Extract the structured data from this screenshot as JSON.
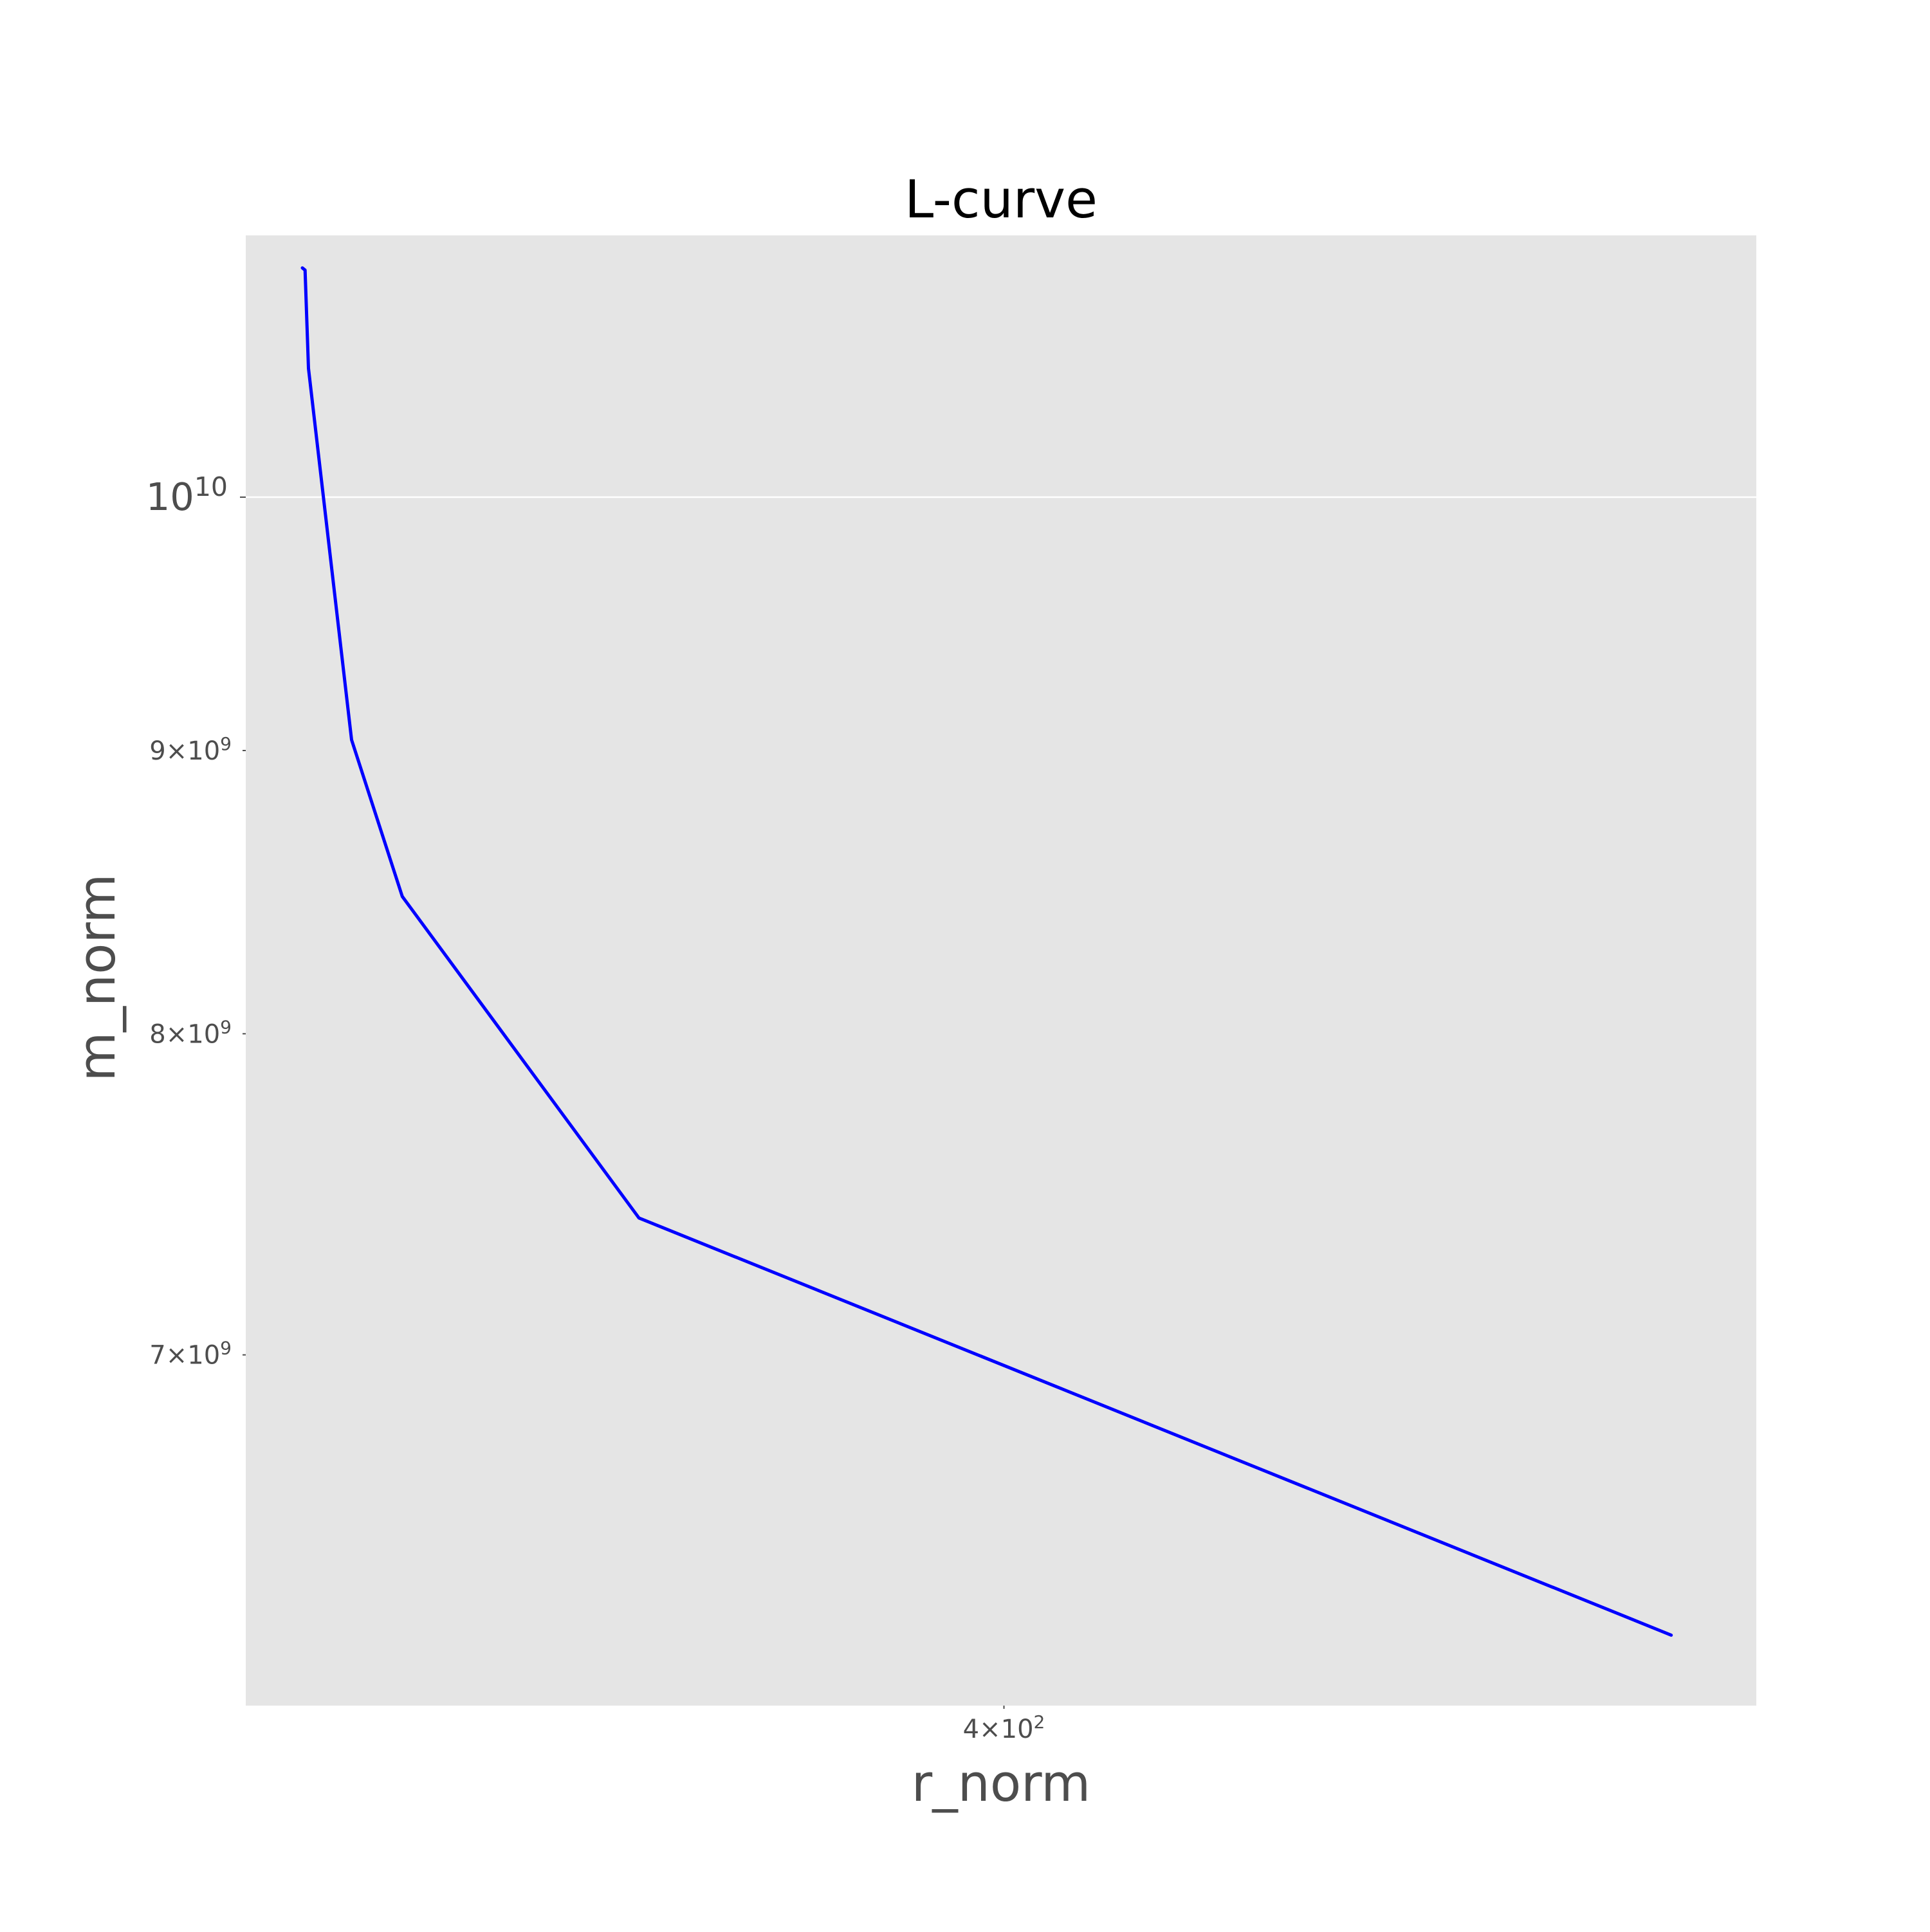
{
  "chart_data": {
    "type": "line",
    "title": "L-curve",
    "xlabel": "r_norm",
    "ylabel": "m_norm",
    "xscale": "log",
    "yscale": "log",
    "xlim": [
      340,
      470
    ],
    "ylim": [
      6050000000,
      11150000000
    ],
    "grid": true,
    "background_color": "#e5e5e5",
    "line_color": "#0000ff",
    "x_ticks": [
      {
        "value": 400,
        "base": "4×10",
        "exp": "2",
        "kind": "minor"
      }
    ],
    "y_ticks": [
      {
        "value": 10000000000,
        "base": "10",
        "exp": "10",
        "kind": "major"
      },
      {
        "value": 9000000000,
        "base": "9×10",
        "exp": "9",
        "kind": "minor"
      },
      {
        "value": 8000000000,
        "base": "8×10",
        "exp": "9",
        "kind": "minor"
      },
      {
        "value": 7000000000,
        "base": "7×10",
        "exp": "9",
        "kind": "minor"
      }
    ],
    "series": [
      {
        "x": [
          344.15,
          344.35,
          344.6,
          347.8,
          351.6,
          369.9,
          461.5
        ],
        "y": [
          11000000000,
          10990000000,
          10550000000,
          9040000000,
          8470000000,
          7410000000,
          6230000000
        ]
      }
    ]
  }
}
